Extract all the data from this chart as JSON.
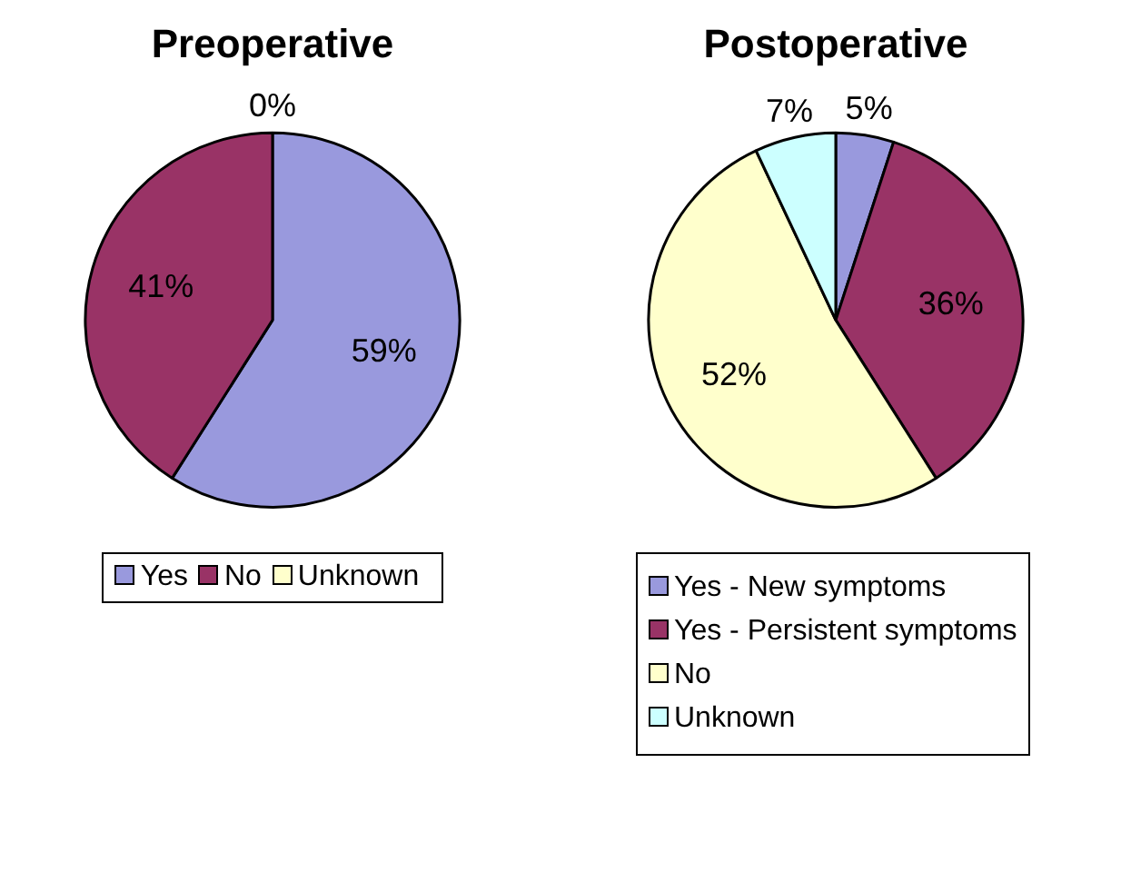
{
  "chart_data": [
    {
      "type": "pie",
      "title": "Preoperative",
      "categories": [
        "Yes",
        "No",
        "Unknown"
      ],
      "values": [
        59,
        41,
        0
      ],
      "colors": [
        "#9999dd",
        "#993366",
        "#ffffcc"
      ],
      "value_labels": [
        "59%",
        "41%",
        "0%"
      ],
      "legend": "bottom"
    },
    {
      "type": "pie",
      "title": "Postoperative",
      "categories": [
        "Yes - New symptoms",
        "Yes - Persistent symptoms",
        "No",
        "Unknown"
      ],
      "values": [
        5,
        36,
        52,
        7
      ],
      "colors": [
        "#9999dd",
        "#993366",
        "#ffffcc",
        "#ccffff"
      ],
      "value_labels": [
        "5%",
        "36%",
        "52%",
        "7%"
      ],
      "legend": "bottom"
    }
  ]
}
